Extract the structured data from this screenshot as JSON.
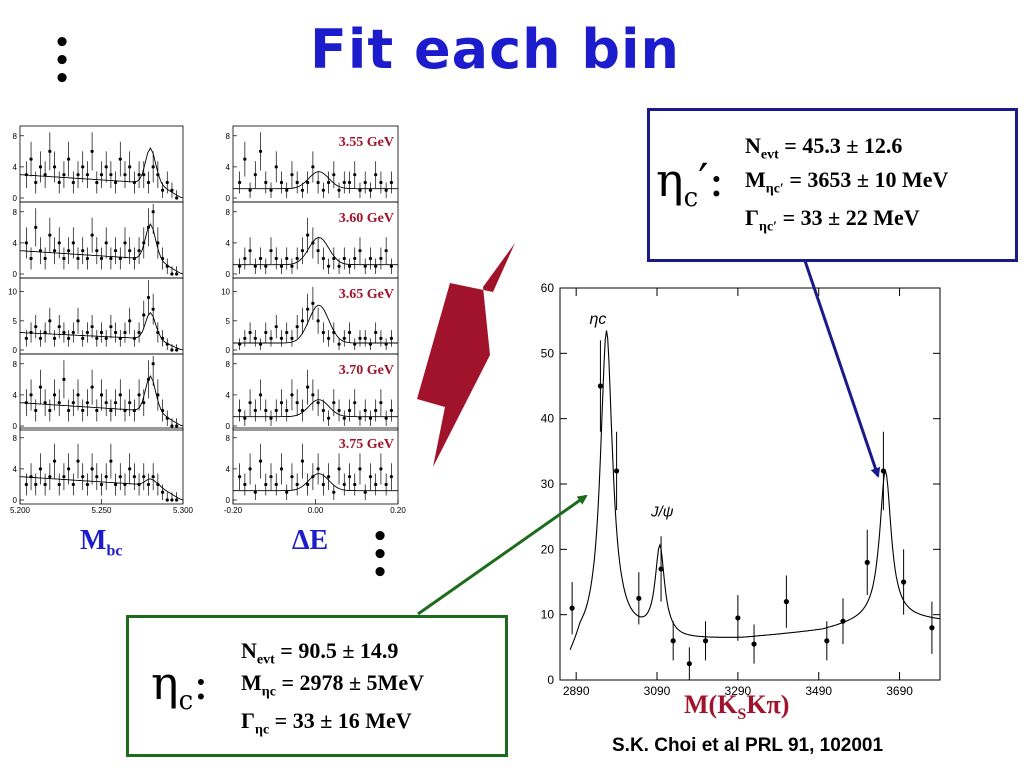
{
  "title": "Fit each bin",
  "eta_c_prime": {
    "symbol": "η",
    "symbol_sub": "c",
    "prime": "′",
    "colon": ":",
    "n_label": "N",
    "n_sub": "evt",
    "n_value": " =  45.3 ± 12.6",
    "m_label": "M",
    "m_sub": "ηc′",
    "m_value": " = 3653 ± 10 MeV",
    "g_label": "Γ",
    "g_sub": "ηc′",
    "g_value": " =  33 ± 22 MeV"
  },
  "eta_c": {
    "symbol": "η",
    "symbol_sub": "c",
    "colon": ":",
    "n_label": "N",
    "n_sub": "evt",
    "n_value": " =  90.5 ± 14.9",
    "m_label": "M",
    "m_sub": "ηc",
    "m_value": " = 2978 ± 5MeV",
    "g_label": "Γ",
    "g_sub": "ηc",
    "g_value": " =  33 ± 16 MeV"
  },
  "mbc_label": {
    "main": "M",
    "sub": "bc"
  },
  "de_label": "ΔE",
  "mass_axis_label": {
    "pre": "M(K",
    "sub": "S",
    "post": "Kπ)"
  },
  "citation": "S.K. Choi et al PRL 91, 102001",
  "colors": {
    "title": "#1c1ccc",
    "bin_label": "#a0132a",
    "arrow_big": "#a0132a",
    "arrow_blue": "#1a1a8a",
    "arrow_green": "#1d6b1d"
  },
  "chart_data": [
    {
      "type": "scatter",
      "name": "mass spectrum",
      "xlabel": "M(KSKπ)",
      "ylabel": "",
      "xlim": [
        2850,
        3790
      ],
      "ylim": [
        0,
        60
      ],
      "xticks": [
        "2890",
        "3090",
        "3290",
        "3490",
        "3690"
      ],
      "yticks": [
        "0",
        "10",
        "20",
        "30",
        "40",
        "50",
        "60"
      ],
      "annotations": [
        "ηc",
        "J/ψ"
      ],
      "points": [
        {
          "x": 2880,
          "y": 11,
          "err": 4
        },
        {
          "x": 2950,
          "y": 45,
          "err": 7
        },
        {
          "x": 2990,
          "y": 32,
          "err": 6
        },
        {
          "x": 3045,
          "y": 12.5,
          "err": 4
        },
        {
          "x": 3100,
          "y": 17,
          "err": 5
        },
        {
          "x": 3130,
          "y": 6,
          "err": 3
        },
        {
          "x": 3170,
          "y": 2.5,
          "err": 2.5
        },
        {
          "x": 3210,
          "y": 6,
          "err": 3
        },
        {
          "x": 3290,
          "y": 9.5,
          "err": 3.5
        },
        {
          "x": 3330,
          "y": 5.5,
          "err": 3
        },
        {
          "x": 3410,
          "y": 12,
          "err": 4
        },
        {
          "x": 3510,
          "y": 6,
          "err": 3
        },
        {
          "x": 3550,
          "y": 9,
          "err": 3.5
        },
        {
          "x": 3610,
          "y": 18,
          "err": 5
        },
        {
          "x": 3650,
          "y": 32,
          "err": 6
        },
        {
          "x": 3700,
          "y": 15,
          "err": 5
        },
        {
          "x": 3770,
          "y": 8,
          "err": 4
        }
      ],
      "fit": {
        "background": [
          [
            2850,
            0
          ],
          [
            2900,
            5.5
          ],
          [
            3000,
            6.8
          ],
          [
            3150,
            6.0
          ],
          [
            3300,
            6.3
          ],
          [
            3500,
            7.5
          ],
          [
            3650,
            9.5
          ],
          [
            3790,
            9
          ]
        ],
        "peaks": [
          {
            "mean": 2965,
            "width": 18,
            "height": 47
          },
          {
            "mean": 3097,
            "width": 14,
            "height": 13.5
          },
          {
            "mean": 3655,
            "width": 17,
            "height": 22.5
          }
        ]
      }
    },
    {
      "type": "scatter",
      "name": "Mbc bins",
      "xlim": [
        5.2,
        5.3
      ],
      "xticks": [
        "5.200",
        "5.250",
        "5.300"
      ],
      "panels": [
        {
          "yticks": [
            "0",
            "4",
            "8"
          ],
          "ymax": 9,
          "values": [
            3,
            5,
            2,
            4,
            3,
            6,
            4,
            2,
            3,
            5,
            2,
            3,
            4,
            3,
            6,
            2,
            3,
            4,
            3,
            2,
            5,
            3,
            4,
            2,
            3,
            3,
            2,
            4,
            3,
            1,
            2,
            1,
            0
          ]
        },
        {
          "yticks": [
            "0",
            "4",
            "8"
          ],
          "ymax": 9,
          "values": [
            4,
            2,
            6,
            3,
            2,
            5,
            3,
            4,
            2,
            3,
            4,
            2,
            3,
            2,
            5,
            3,
            2,
            4,
            2,
            3,
            2,
            4,
            3,
            2,
            3,
            4,
            6,
            8,
            4,
            2,
            1,
            0,
            0
          ]
        },
        {
          "yticks": [
            "0",
            "5",
            "10"
          ],
          "ymax": 12,
          "values": [
            2,
            3,
            4,
            2,
            3,
            5,
            2,
            4,
            3,
            2,
            3,
            5,
            2,
            3,
            4,
            2,
            3,
            2,
            4,
            3,
            2,
            3,
            5,
            2,
            3,
            6,
            9,
            7,
            3,
            2,
            1,
            0,
            0
          ]
        },
        {
          "yticks": [
            "0",
            "4",
            "8"
          ],
          "ymax": 9,
          "values": [
            3,
            4,
            2,
            5,
            3,
            2,
            4,
            3,
            6,
            2,
            3,
            4,
            2,
            3,
            5,
            2,
            4,
            3,
            2,
            3,
            4,
            2,
            3,
            2,
            4,
            3,
            6,
            8,
            4,
            2,
            1,
            0,
            0
          ]
        },
        {
          "yticks": [
            "0",
            "4",
            "8"
          ],
          "ymax": 9,
          "values": [
            2,
            3,
            2,
            4,
            2,
            3,
            5,
            2,
            3,
            4,
            2,
            5,
            3,
            2,
            4,
            3,
            2,
            3,
            5,
            2,
            3,
            2,
            4,
            3,
            2,
            3,
            2,
            3,
            2,
            1,
            0,
            0,
            0
          ]
        }
      ]
    },
    {
      "type": "scatter",
      "name": "ΔE bins",
      "xlim": [
        -0.2,
        0.2
      ],
      "xticks": [
        "-0.20",
        "0.00",
        "0.20"
      ],
      "panels": [
        {
          "label": "3.55 GeV",
          "yticks": [
            "0",
            "4",
            "8"
          ],
          "ymax": 9,
          "values": [
            2,
            5,
            1,
            3,
            6,
            2,
            1,
            4,
            2,
            1,
            3,
            2,
            1,
            2,
            4,
            2,
            1,
            2,
            3,
            1,
            2,
            2,
            3,
            1,
            2,
            1,
            3,
            2,
            1,
            2
          ]
        },
        {
          "label": "3.60 GeV",
          "yticks": [
            "0",
            "4",
            "8"
          ],
          "ymax": 9,
          "values": [
            1,
            2,
            3,
            1,
            2,
            1,
            3,
            2,
            1,
            2,
            1,
            2,
            3,
            5,
            4,
            3,
            2,
            1,
            2,
            1,
            2,
            1,
            2,
            3,
            1,
            2,
            1,
            2,
            3,
            1
          ]
        },
        {
          "label": "3.65 GeV",
          "yticks": [
            "0",
            "5",
            "10"
          ],
          "ymax": 12,
          "values": [
            1,
            2,
            3,
            2,
            1,
            3,
            2,
            4,
            2,
            3,
            2,
            4,
            5,
            7,
            8,
            5,
            3,
            2,
            3,
            1,
            2,
            3,
            1,
            2,
            2,
            1,
            3,
            2,
            1,
            2
          ]
        },
        {
          "label": "3.70 GeV",
          "yticks": [
            "0",
            "4",
            "8"
          ],
          "ymax": 9,
          "values": [
            2,
            1,
            3,
            2,
            4,
            2,
            1,
            2,
            3,
            2,
            4,
            3,
            2,
            5,
            4,
            3,
            2,
            1,
            3,
            2,
            1,
            2,
            3,
            1,
            2,
            1,
            2,
            3,
            1,
            2
          ]
        },
        {
          "label": "3.75 GeV",
          "yticks": [
            "0",
            "4",
            "8"
          ],
          "ymax": 9,
          "values": [
            3,
            2,
            4,
            1,
            5,
            2,
            3,
            2,
            4,
            1,
            3,
            2,
            5,
            2,
            3,
            4,
            2,
            3,
            1,
            4,
            2,
            3,
            2,
            4,
            1,
            3,
            2,
            4,
            2,
            3
          ]
        }
      ]
    }
  ]
}
